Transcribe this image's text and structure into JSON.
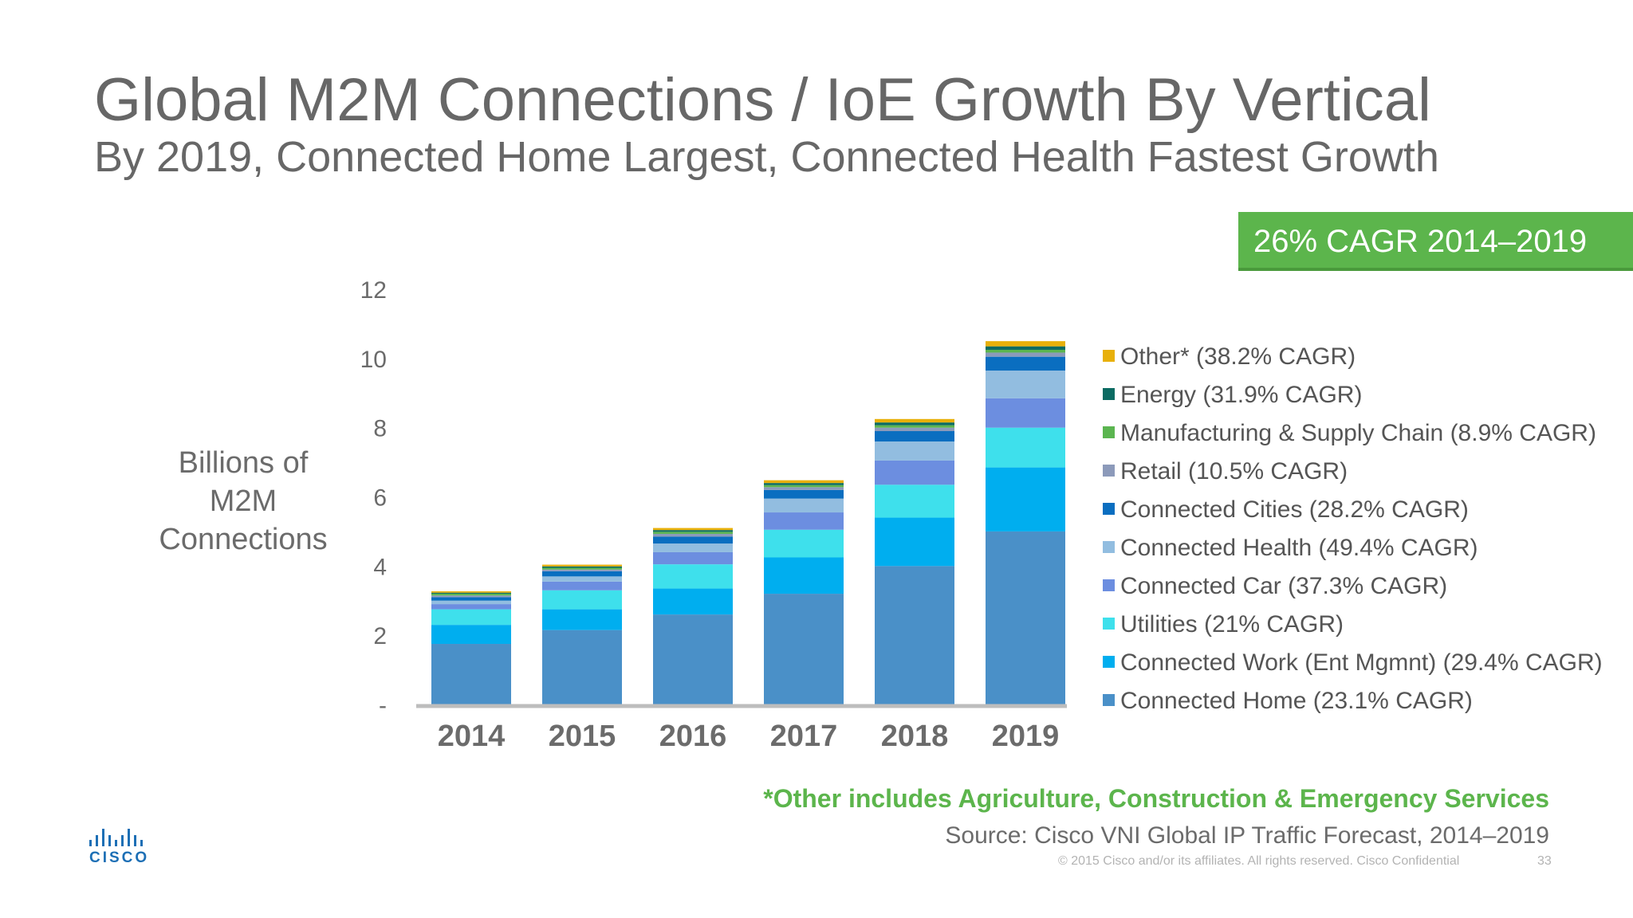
{
  "slide": {
    "title": "Global M2M Connections / IoE Growth By Vertical",
    "subtitle": "By 2019, Connected Home Largest, Connected Health Fastest Growth",
    "cagr_badge": "26% CAGR 2014–2019",
    "footnote": "*Other includes Agriculture, Construction & Emergency Services",
    "source": "Source: Cisco VNI Global IP Traffic Forecast, 2014–2019",
    "copyright": "© 2015  Cisco and/or its affiliates. All rights reserved.   Cisco Confidential",
    "page_number": "33",
    "logo_text": "CISCO",
    "brand_color": "#1d6fb5",
    "badge_color": "#5cb54c"
  },
  "chart_data": {
    "type": "bar",
    "stacked": true,
    "ylabel": "Billions of M2M Connections",
    "ylim": [
      0,
      12
    ],
    "yticks": [
      "-",
      "2",
      "4",
      "6",
      "8",
      "10",
      "12"
    ],
    "categories": [
      "2014",
      "2015",
      "2016",
      "2017",
      "2018",
      "2019"
    ],
    "legend_position": "right",
    "series": [
      {
        "name": "Connected Home (23.1% CAGR)",
        "color": "#4a90c8",
        "values": [
          1.75,
          2.15,
          2.6,
          3.2,
          4.0,
          5.0
        ]
      },
      {
        "name": "Connected Work (Ent Mgmnt) (29.4% CAGR)",
        "color": "#00aeef",
        "values": [
          0.55,
          0.6,
          0.75,
          1.05,
          1.4,
          1.85
        ]
      },
      {
        "name": "Utilities (21% CAGR)",
        "color": "#3ee0ec",
        "values": [
          0.45,
          0.55,
          0.7,
          0.8,
          0.95,
          1.15
        ]
      },
      {
        "name": "Connected Car (37.3% CAGR)",
        "color": "#6c8ee0",
        "values": [
          0.15,
          0.25,
          0.35,
          0.5,
          0.7,
          0.85
        ]
      },
      {
        "name": "Connected Health (49.4% CAGR)",
        "color": "#92bde0",
        "values": [
          0.1,
          0.15,
          0.25,
          0.4,
          0.55,
          0.8
        ]
      },
      {
        "name": "Connected Cities (28.2% CAGR)",
        "color": "#0a6ec0",
        "values": [
          0.1,
          0.15,
          0.2,
          0.25,
          0.3,
          0.4
        ]
      },
      {
        "name": "Retail (10.5% CAGR)",
        "color": "#8c9aba",
        "values": [
          0.05,
          0.05,
          0.08,
          0.08,
          0.1,
          0.12
        ]
      },
      {
        "name": "Manufacturing & Supply Chain (8.9% CAGR)",
        "color": "#5bb550",
        "values": [
          0.05,
          0.05,
          0.06,
          0.06,
          0.07,
          0.08
        ]
      },
      {
        "name": "Energy (31.9% CAGR)",
        "color": "#0b6b62",
        "values": [
          0.03,
          0.04,
          0.05,
          0.06,
          0.08,
          0.1
        ]
      },
      {
        "name": "Other* (38.2% CAGR)",
        "color": "#e8b00a",
        "values": [
          0.04,
          0.05,
          0.06,
          0.08,
          0.1,
          0.15
        ]
      }
    ]
  }
}
